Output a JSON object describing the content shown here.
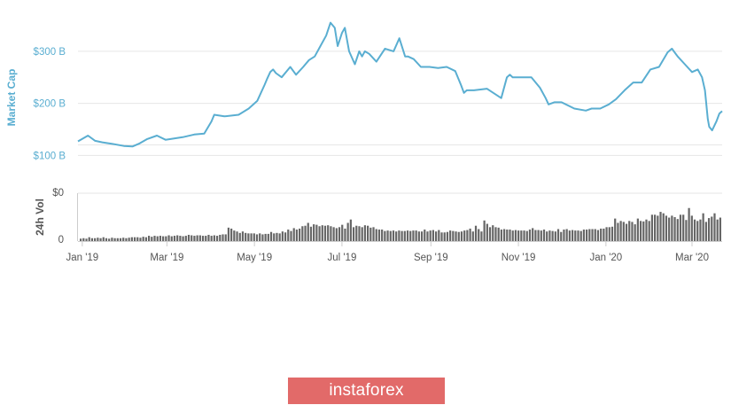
{
  "brand": {
    "text": "instaforex",
    "bg": "#e26a69"
  },
  "colors": {
    "line": "#5aaed1",
    "volume": "#666666",
    "grid": "#e6e6e6"
  },
  "chart_data": [
    {
      "type": "line",
      "ylabel": "Market Cap",
      "y_tick_labels": [
        "$100 B",
        "$200 B",
        "$300 B"
      ],
      "y_ticks": [
        100,
        200,
        300
      ],
      "ylim": [
        75,
        390
      ],
      "grid": true,
      "x_tick_labels": [
        "Jan '19",
        "Mar '19",
        "May '19",
        "Jul '19",
        "Sep '19",
        "Nov '19",
        "Jan '20",
        "Mar '20"
      ],
      "x_ticks": [
        "2019-01-01",
        "2019-03-01",
        "2019-05-01",
        "2019-07-01",
        "2019-09-01",
        "2019-11-01",
        "2020-01-01",
        "2020-03-01"
      ],
      "xlim": [
        "2018-12-29",
        "2020-03-22"
      ],
      "series": [
        {
          "x": [
            "2018-12-29",
            "2019-01-05",
            "2019-01-10",
            "2019-01-15",
            "2019-01-22",
            "2019-01-30",
            "2019-02-05",
            "2019-02-10",
            "2019-02-15",
            "2019-02-22",
            "2019-02-28",
            "2019-03-05",
            "2019-03-12",
            "2019-03-20",
            "2019-03-27",
            "2019-04-01",
            "2019-04-03",
            "2019-04-10",
            "2019-04-20",
            "2019-04-27",
            "2019-05-03",
            "2019-05-08",
            "2019-05-10",
            "2019-05-12",
            "2019-05-14",
            "2019-05-16",
            "2019-05-20",
            "2019-05-26",
            "2019-05-30",
            "2019-06-04",
            "2019-06-08",
            "2019-06-12",
            "2019-06-16",
            "2019-06-20",
            "2019-06-23",
            "2019-06-26",
            "2019-06-28",
            "2019-07-01",
            "2019-07-03",
            "2019-07-06",
            "2019-07-10",
            "2019-07-13",
            "2019-07-15",
            "2019-07-17",
            "2019-07-20",
            "2019-07-25",
            "2019-07-31",
            "2019-08-06",
            "2019-08-10",
            "2019-08-14",
            "2019-08-16",
            "2019-08-20",
            "2019-08-25",
            "2019-08-31",
            "2019-09-06",
            "2019-09-12",
            "2019-09-18",
            "2019-09-22",
            "2019-09-24",
            "2019-09-26",
            "2019-10-01",
            "2019-10-10",
            "2019-10-20",
            "2019-10-24",
            "2019-10-26",
            "2019-10-28",
            "2019-11-03",
            "2019-11-10",
            "2019-11-16",
            "2019-11-20",
            "2019-11-22",
            "2019-11-26",
            "2019-12-01",
            "2019-12-10",
            "2019-12-18",
            "2019-12-22",
            "2019-12-28",
            "2020-01-03",
            "2020-01-08",
            "2020-01-14",
            "2020-01-20",
            "2020-01-26",
            "2020-02-01",
            "2020-02-07",
            "2020-02-13",
            "2020-02-16",
            "2020-02-20",
            "2020-02-25",
            "2020-03-01",
            "2020-03-05",
            "2020-03-08",
            "2020-03-10",
            "2020-03-12",
            "2020-03-13",
            "2020-03-15",
            "2020-03-18",
            "2020-03-20",
            "2020-03-22"
          ],
          "y": [
            127,
            138,
            128,
            125,
            122,
            118,
            117,
            123,
            131,
            138,
            130,
            132,
            135,
            140,
            142,
            165,
            178,
            175,
            178,
            190,
            205,
            235,
            248,
            260,
            265,
            258,
            250,
            270,
            255,
            270,
            283,
            290,
            310,
            330,
            355,
            345,
            310,
            335,
            345,
            300,
            275,
            300,
            290,
            300,
            295,
            280,
            305,
            300,
            325,
            290,
            290,
            285,
            270,
            270,
            268,
            270,
            262,
            235,
            220,
            225,
            225,
            228,
            210,
            250,
            255,
            250,
            250,
            250,
            230,
            210,
            198,
            202,
            202,
            190,
            186,
            190,
            190,
            198,
            208,
            225,
            240,
            240,
            265,
            270,
            298,
            305,
            290,
            275,
            260,
            265,
            250,
            225,
            170,
            155,
            148,
            165,
            180,
            185
          ]
        }
      ]
    },
    {
      "type": "bar",
      "ylabel": "24h Vol",
      "y_tick_labels": [
        "0",
        "$0"
      ],
      "y_ticks": [
        0,
        1
      ],
      "ylim": [
        0,
        1
      ],
      "grid": true,
      "x_tick_labels": [
        "Jan '19",
        "Mar '19",
        "May '19",
        "Jul '19",
        "Sep '19",
        "Nov '19",
        "Jan '20",
        "Mar '20"
      ],
      "xlim": [
        "2018-12-29",
        "2020-03-22"
      ],
      "values": [
        0.05,
        0.06,
        0.05,
        0.08,
        0.06,
        0.06,
        0.07,
        0.06,
        0.08,
        0.06,
        0.05,
        0.07,
        0.06,
        0.06,
        0.06,
        0.07,
        0.06,
        0.07,
        0.08,
        0.08,
        0.08,
        0.07,
        0.09,
        0.08,
        0.11,
        0.09,
        0.11,
        0.1,
        0.11,
        0.1,
        0.1,
        0.12,
        0.1,
        0.11,
        0.12,
        0.11,
        0.1,
        0.11,
        0.13,
        0.12,
        0.11,
        0.12,
        0.12,
        0.11,
        0.11,
        0.13,
        0.11,
        0.12,
        0.11,
        0.13,
        0.14,
        0.14,
        0.28,
        0.26,
        0.22,
        0.2,
        0.17,
        0.2,
        0.17,
        0.16,
        0.16,
        0.16,
        0.14,
        0.16,
        0.14,
        0.15,
        0.15,
        0.19,
        0.16,
        0.17,
        0.16,
        0.2,
        0.18,
        0.24,
        0.21,
        0.27,
        0.24,
        0.26,
        0.31,
        0.32,
        0.38,
        0.3,
        0.35,
        0.34,
        0.31,
        0.33,
        0.32,
        0.33,
        0.31,
        0.29,
        0.27,
        0.29,
        0.34,
        0.26,
        0.38,
        0.45,
        0.29,
        0.32,
        0.31,
        0.29,
        0.33,
        0.32,
        0.28,
        0.29,
        0.25,
        0.24,
        0.24,
        0.21,
        0.22,
        0.21,
        0.22,
        0.2,
        0.22,
        0.21,
        0.21,
        0.22,
        0.21,
        0.22,
        0.22,
        0.2,
        0.2,
        0.24,
        0.2,
        0.22,
        0.23,
        0.2,
        0.23,
        0.18,
        0.18,
        0.19,
        0.22,
        0.21,
        0.2,
        0.19,
        0.2,
        0.22,
        0.23,
        0.26,
        0.2,
        0.32,
        0.25,
        0.2,
        0.43,
        0.36,
        0.29,
        0.33,
        0.29,
        0.28,
        0.24,
        0.25,
        0.24,
        0.24,
        0.22,
        0.23,
        0.22,
        0.22,
        0.22,
        0.21,
        0.24,
        0.27,
        0.23,
        0.23,
        0.22,
        0.24,
        0.2,
        0.22,
        0.21,
        0.2,
        0.25,
        0.19,
        0.24,
        0.25,
        0.22,
        0.23,
        0.22,
        0.22,
        0.21,
        0.24,
        0.24,
        0.25,
        0.25,
        0.25,
        0.23,
        0.26,
        0.26,
        0.29,
        0.29,
        0.3,
        0.47,
        0.38,
        0.42,
        0.4,
        0.36,
        0.42,
        0.4,
        0.35,
        0.47,
        0.42,
        0.41,
        0.45,
        0.42,
        0.55,
        0.55,
        0.53,
        0.61,
        0.58,
        0.53,
        0.49,
        0.53,
        0.5,
        0.46,
        0.55,
        0.55,
        0.44,
        0.69,
        0.53,
        0.45,
        0.42,
        0.45,
        0.58,
        0.4,
        0.48,
        0.51,
        0.58,
        0.45,
        0.49
      ]
    }
  ]
}
